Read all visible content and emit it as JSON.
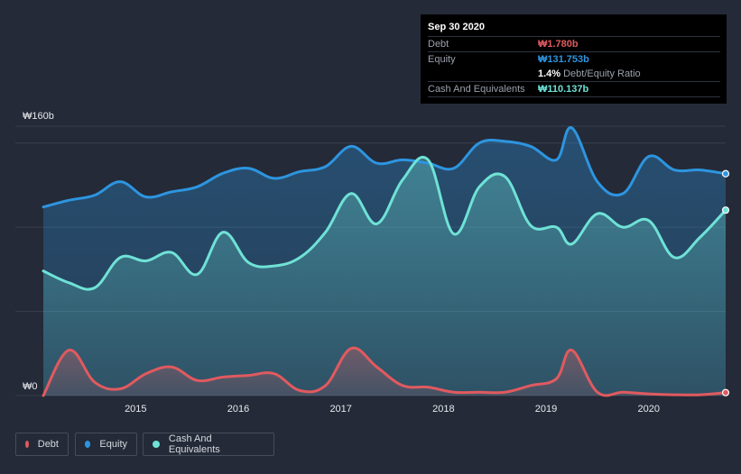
{
  "colors": {
    "background": "#242a37",
    "debt": "#e05a5f",
    "equity": "#2d95e0",
    "cash": "#6fe2d6",
    "grid": "#39404d"
  },
  "tooltip": {
    "date": "Sep 30 2020",
    "debt_label": "Debt",
    "debt_value": "₩1.780b",
    "equity_label": "Equity",
    "equity_value": "₩131.753b",
    "ratio_value": "1.4%",
    "ratio_label": "Debt/Equity Ratio",
    "cash_label": "Cash And Equivalents",
    "cash_value": "₩110.137b"
  },
  "legend": {
    "debt": "Debt",
    "equity": "Equity",
    "cash": "Cash And Equivalents"
  },
  "chart_data": {
    "type": "area",
    "title": "",
    "xlabel": "",
    "ylabel": "",
    "unit": "₩b",
    "y_tick_labels": {
      "top": "₩160b",
      "bottom": "₩0"
    },
    "ylim": [
      0,
      160
    ],
    "xlim": [
      2014.1,
      2020.75
    ],
    "x_ticks": [
      {
        "value": 2015.0,
        "label": "2015"
      },
      {
        "value": 2016.0,
        "label": "2016"
      },
      {
        "value": 2017.0,
        "label": "2017"
      },
      {
        "value": 2018.0,
        "label": "2018"
      },
      {
        "value": 2019.0,
        "label": "2019"
      },
      {
        "value": 2020.0,
        "label": "2020"
      }
    ],
    "gridlines": [
      0,
      50,
      100,
      150,
      160
    ],
    "series": [
      {
        "name": "Equity",
        "key": "equity",
        "points": [
          [
            2014.1,
            112
          ],
          [
            2014.35,
            116
          ],
          [
            2014.6,
            119
          ],
          [
            2014.85,
            127
          ],
          [
            2015.1,
            118
          ],
          [
            2015.35,
            121
          ],
          [
            2015.6,
            124
          ],
          [
            2015.85,
            132
          ],
          [
            2016.1,
            135
          ],
          [
            2016.35,
            129
          ],
          [
            2016.6,
            133
          ],
          [
            2016.85,
            136
          ],
          [
            2017.1,
            148
          ],
          [
            2017.35,
            138
          ],
          [
            2017.6,
            140
          ],
          [
            2017.85,
            138
          ],
          [
            2018.1,
            135
          ],
          [
            2018.35,
            150
          ],
          [
            2018.6,
            151
          ],
          [
            2018.85,
            148
          ],
          [
            2019.1,
            140
          ],
          [
            2019.25,
            159
          ],
          [
            2019.5,
            127
          ],
          [
            2019.75,
            120
          ],
          [
            2020.0,
            142
          ],
          [
            2020.25,
            134
          ],
          [
            2020.5,
            134
          ],
          [
            2020.75,
            131.753
          ]
        ]
      },
      {
        "name": "Cash And Equivalents",
        "key": "cash",
        "points": [
          [
            2014.1,
            74
          ],
          [
            2014.35,
            67
          ],
          [
            2014.6,
            64
          ],
          [
            2014.85,
            82
          ],
          [
            2015.1,
            80
          ],
          [
            2015.35,
            85
          ],
          [
            2015.6,
            72
          ],
          [
            2015.85,
            97
          ],
          [
            2016.1,
            79
          ],
          [
            2016.35,
            77
          ],
          [
            2016.6,
            82
          ],
          [
            2016.85,
            97
          ],
          [
            2017.1,
            120
          ],
          [
            2017.35,
            102
          ],
          [
            2017.6,
            128
          ],
          [
            2017.85,
            140
          ],
          [
            2018.1,
            96
          ],
          [
            2018.35,
            124
          ],
          [
            2018.6,
            130
          ],
          [
            2018.85,
            101
          ],
          [
            2019.1,
            100
          ],
          [
            2019.25,
            90
          ],
          [
            2019.5,
            108
          ],
          [
            2019.75,
            100
          ],
          [
            2020.0,
            104
          ],
          [
            2020.25,
            82
          ],
          [
            2020.5,
            94
          ],
          [
            2020.75,
            110.137
          ]
        ]
      },
      {
        "name": "Debt",
        "key": "debt",
        "points": [
          [
            2014.1,
            0
          ],
          [
            2014.35,
            27
          ],
          [
            2014.6,
            8
          ],
          [
            2014.85,
            4
          ],
          [
            2015.1,
            13
          ],
          [
            2015.35,
            17
          ],
          [
            2015.6,
            9
          ],
          [
            2015.85,
            11
          ],
          [
            2016.1,
            12
          ],
          [
            2016.35,
            13
          ],
          [
            2016.6,
            3
          ],
          [
            2016.85,
            6
          ],
          [
            2017.1,
            28
          ],
          [
            2017.35,
            17
          ],
          [
            2017.6,
            6
          ],
          [
            2017.85,
            5
          ],
          [
            2018.1,
            2
          ],
          [
            2018.35,
            2
          ],
          [
            2018.6,
            2
          ],
          [
            2018.85,
            6
          ],
          [
            2019.1,
            10
          ],
          [
            2019.25,
            27
          ],
          [
            2019.5,
            2
          ],
          [
            2019.75,
            2
          ],
          [
            2020.0,
            1
          ],
          [
            2020.25,
            0.5
          ],
          [
            2020.5,
            0.5
          ],
          [
            2020.75,
            1.78
          ]
        ]
      }
    ]
  }
}
